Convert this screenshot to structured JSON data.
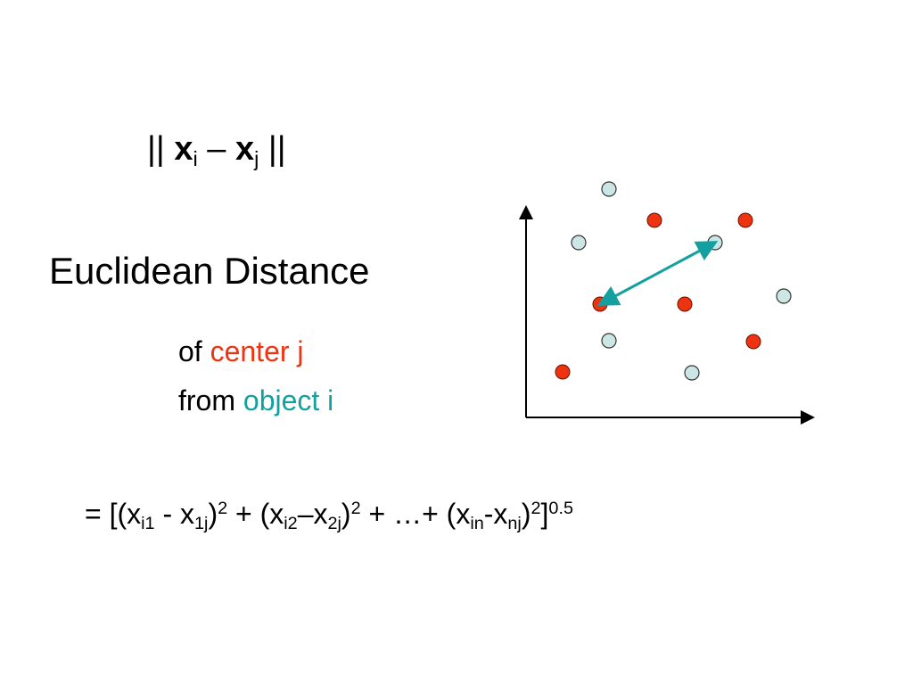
{
  "norm": [
    "||",
    "x",
    "i",
    "–",
    "x",
    "j",
    "||"
  ],
  "heading": "Euclidean Distance",
  "caption": {
    "line1": [
      "of",
      "center j"
    ],
    "line2": [
      "from",
      "object i"
    ]
  },
  "formula": [
    "= [(x",
    "i1",
    " - x",
    "1j",
    ")",
    "2",
    " + (x",
    "i2",
    "–x",
    "2j",
    ")",
    "2",
    " + …+ (x",
    "in",
    "-x",
    "nj",
    ")",
    "2",
    "]",
    "0.5"
  ]
}
